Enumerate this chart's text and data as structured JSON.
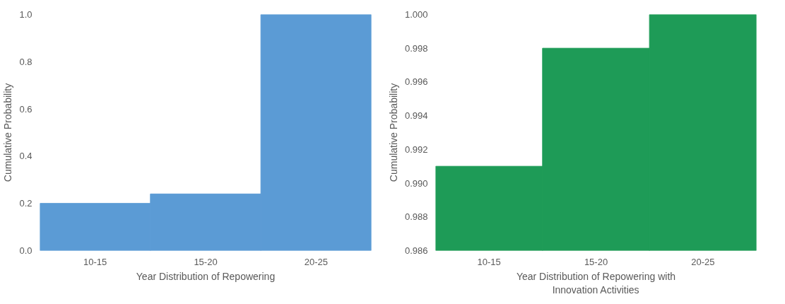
{
  "chart_data": [
    {
      "type": "bar",
      "categories": [
        "10-15",
        "15-20",
        "20-25"
      ],
      "values": [
        0.2,
        0.24,
        1.0
      ],
      "color": "#5b9bd5",
      "xlabel": "Year Distribution of Repowering",
      "ylabel": "Cumulative Probability",
      "ylim": [
        0,
        1.0
      ],
      "yticks": [
        {
          "value": 0,
          "label": "0.0"
        },
        0.2,
        0.4,
        0.6,
        0.8,
        {
          "value": 1,
          "label": "1.0"
        }
      ],
      "grid": false
    },
    {
      "type": "bar",
      "categories": [
        "10-15",
        "15-20",
        "20-25"
      ],
      "values": [
        0.991,
        0.998,
        1.0
      ],
      "color": "#1e9b57",
      "xlabel": "Year Distribution of Repowering with Innovation Activities",
      "ylabel": "Cumulative Probability",
      "ylim": [
        0.986,
        1.0
      ],
      "yticks": [
        0.986,
        0.988,
        {
          "value": 0.99,
          "label": "0.990"
        },
        0.992,
        0.994,
        0.996,
        0.998,
        {
          "value": 1,
          "label": "1.000"
        }
      ],
      "grid": false
    }
  ]
}
